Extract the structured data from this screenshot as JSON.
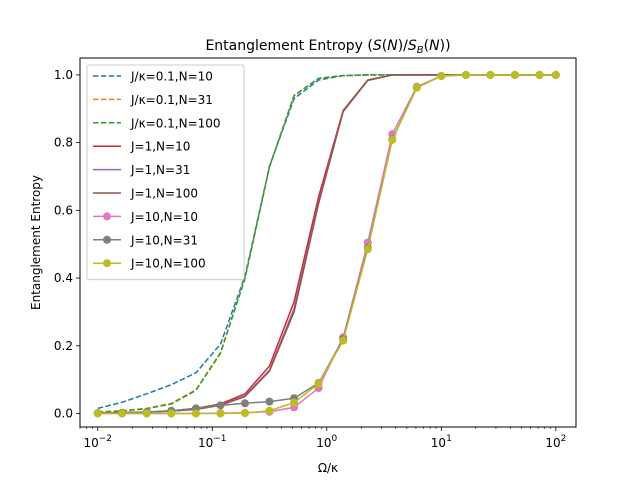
{
  "chart_data": {
    "type": "line",
    "title": "Entanglement Entropy (S(N)/S_B(N))",
    "xlabel": "Ω/κ",
    "ylabel": "Entanglement Entropy",
    "xscale": "log",
    "xlim": [
      0.007,
      150
    ],
    "ylim": [
      -0.04,
      1.05
    ],
    "xticks": [
      {
        "value": 0.01,
        "base": "10",
        "exp": "−2"
      },
      {
        "value": 0.1,
        "base": "10",
        "exp": "−1"
      },
      {
        "value": 1,
        "base": "10",
        "exp": "0"
      },
      {
        "value": 10,
        "base": "10",
        "exp": "1"
      },
      {
        "value": 100,
        "base": "10",
        "exp": "2"
      }
    ],
    "yticks": [
      "0.0",
      "0.2",
      "0.4",
      "0.6",
      "0.8",
      "1.0"
    ],
    "legend_position": "upper-left",
    "x": [
      0.01,
      0.0163,
      0.0268,
      0.0439,
      0.072,
      0.118,
      0.193,
      0.316,
      0.518,
      0.848,
      1.39,
      2.28,
      3.73,
      6.11,
      10.0,
      16.4,
      26.8,
      43.9,
      72.0,
      100
    ],
    "series": [
      {
        "name": "J/κ=0.1,N=10",
        "color": "#1f77b4",
        "dash": true,
        "marker": false,
        "values": [
          0.015,
          0.033,
          0.058,
          0.085,
          0.12,
          0.205,
          0.405,
          0.73,
          0.93,
          0.985,
          0.998,
          1.0,
          1.0,
          1.0,
          1.0,
          1.0,
          1.0,
          1.0,
          1.0,
          1.0
        ]
      },
      {
        "name": "J/κ=0.1,N=31",
        "color": "#ff7f0e",
        "dash": true,
        "marker": false,
        "values": [
          0.005,
          0.008,
          0.015,
          0.03,
          0.07,
          0.18,
          0.4,
          0.73,
          0.94,
          0.99,
          0.998,
          1.0,
          1.0,
          1.0,
          1.0,
          1.0,
          1.0,
          1.0,
          1.0,
          1.0
        ]
      },
      {
        "name": "J/κ=0.1,N=100",
        "color": "#2ca02c",
        "dash": true,
        "marker": false,
        "values": [
          0.004,
          0.007,
          0.014,
          0.028,
          0.068,
          0.178,
          0.398,
          0.728,
          0.938,
          0.99,
          0.998,
          1.0,
          1.0,
          1.0,
          1.0,
          1.0,
          1.0,
          1.0,
          1.0,
          1.0
        ]
      },
      {
        "name": "J=1,N=10",
        "color": "#d62728",
        "dash": false,
        "marker": false,
        "values": [
          0.001,
          0.002,
          0.004,
          0.008,
          0.015,
          0.028,
          0.058,
          0.14,
          0.33,
          0.64,
          0.895,
          0.985,
          1.0,
          1.0,
          1.0,
          1.0,
          1.0,
          1.0,
          1.0,
          1.0
        ]
      },
      {
        "name": "J=1,N=31",
        "color": "#9467bd",
        "dash": false,
        "marker": false,
        "values": [
          0.001,
          0.002,
          0.004,
          0.007,
          0.013,
          0.025,
          0.052,
          0.128,
          0.31,
          0.625,
          0.893,
          0.984,
          1.0,
          1.0,
          1.0,
          1.0,
          1.0,
          1.0,
          1.0,
          1.0
        ]
      },
      {
        "name": "J=1,N=100",
        "color": "#8c564b",
        "dash": false,
        "marker": false,
        "values": [
          0.001,
          0.002,
          0.004,
          0.007,
          0.012,
          0.024,
          0.05,
          0.125,
          0.3,
          0.62,
          0.892,
          0.984,
          1.0,
          1.0,
          1.0,
          1.0,
          1.0,
          1.0,
          1.0,
          1.0
        ]
      },
      {
        "name": "J=10,N=10",
        "color": "#e377c2",
        "dash": false,
        "marker": true,
        "values": [
          0.0,
          0.0,
          0.0,
          0.0,
          0.0,
          0.001,
          0.002,
          0.005,
          0.018,
          0.075,
          0.225,
          0.505,
          0.825,
          0.965,
          0.997,
          1.0,
          1.0,
          1.0,
          1.0,
          1.0
        ]
      },
      {
        "name": "J=10,N=31",
        "color": "#7f7f7f",
        "dash": false,
        "marker": true,
        "values": [
          0.001,
          0.002,
          0.004,
          0.008,
          0.015,
          0.024,
          0.03,
          0.035,
          0.045,
          0.09,
          0.22,
          0.49,
          0.81,
          0.963,
          0.997,
          1.0,
          1.0,
          1.0,
          1.0,
          1.0
        ]
      },
      {
        "name": "J=10,N=100",
        "color": "#bcbd22",
        "dash": false,
        "marker": true,
        "values": [
          0.0,
          0.0,
          0.0,
          0.0,
          0.0,
          0.0,
          0.001,
          0.008,
          0.032,
          0.088,
          0.215,
          0.485,
          0.808,
          0.962,
          0.997,
          1.0,
          1.0,
          1.0,
          1.0,
          1.0
        ]
      }
    ]
  }
}
